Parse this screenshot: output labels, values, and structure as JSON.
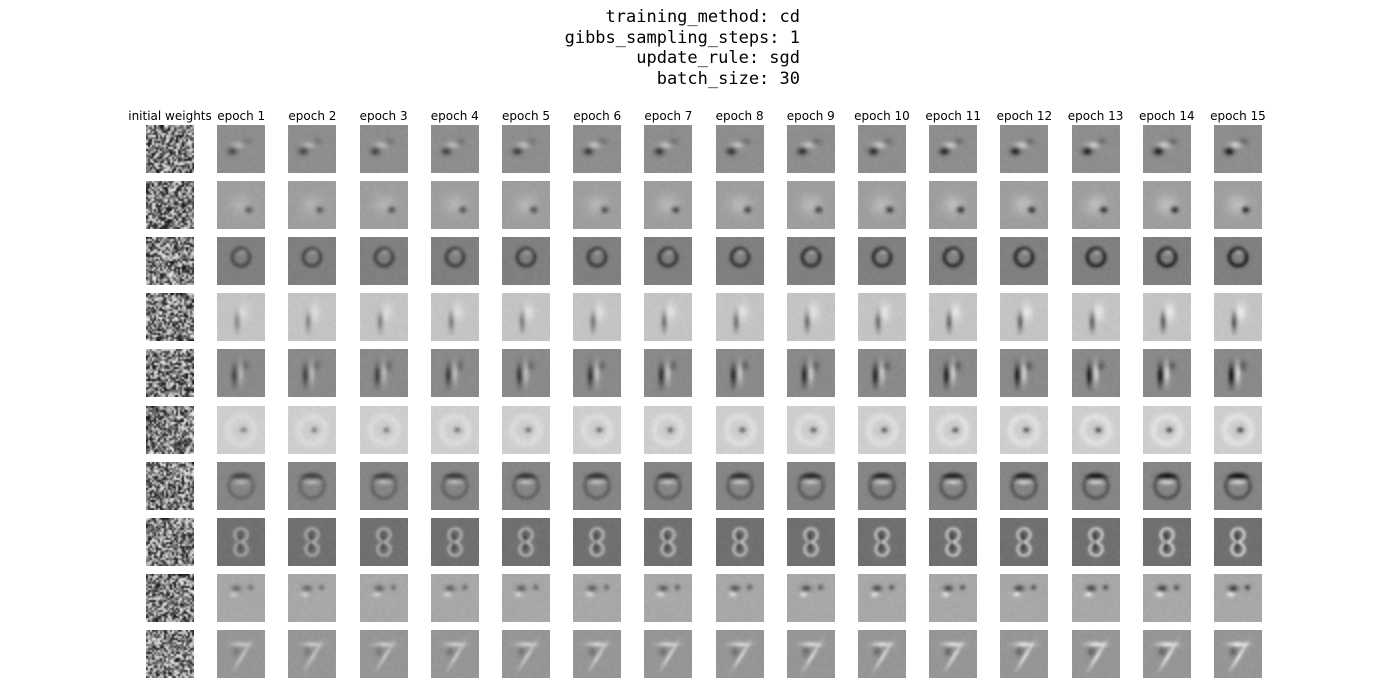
{
  "header": {
    "lines": [
      "training_method: cd",
      "gibbs_sampling_steps: 1",
      "update_rule: sgd",
      "batch_size: 30"
    ]
  },
  "grid": {
    "columns": [
      "initial weights",
      "epoch 1",
      "epoch 2",
      "epoch 3",
      "epoch 4",
      "epoch 5",
      "epoch 6",
      "epoch 7",
      "epoch 8",
      "epoch 9",
      "epoch 10",
      "epoch 11",
      "epoch 12",
      "epoch 13",
      "epoch 14",
      "epoch 15"
    ],
    "row_count": 10,
    "rows": [
      {
        "feature": "blob-upper-left",
        "bg_gray": 142
      },
      {
        "feature": "dot-right",
        "bg_gray": 158
      },
      {
        "feature": "ring-zero",
        "bg_gray": 128
      },
      {
        "feature": "stroke-vertical",
        "bg_gray": 196
      },
      {
        "feature": "stroke-vertical-dark",
        "bg_gray": 138
      },
      {
        "feature": "dot-center",
        "bg_gray": 206
      },
      {
        "feature": "ring-top",
        "bg_gray": 134
      },
      {
        "feature": "figure-eight",
        "bg_gray": 112
      },
      {
        "feature": "blob-upper-spots",
        "bg_gray": 168
      },
      {
        "feature": "stroke-seven",
        "bg_gray": 150
      }
    ]
  }
}
